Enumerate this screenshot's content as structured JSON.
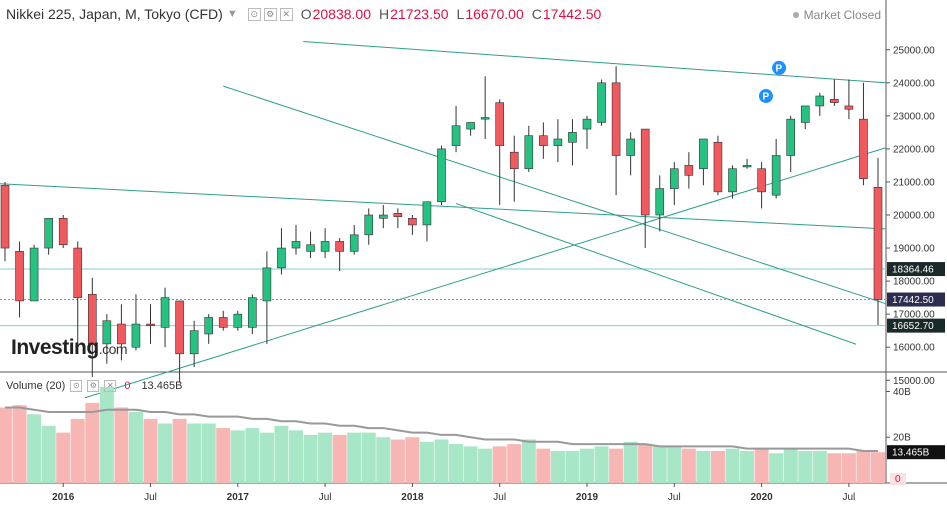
{
  "header": {
    "title": "Nikkei 225, Japan, M, Tokyo (CFD)",
    "chevron_icon": "chevron-down-icon",
    "icons": [
      "settings-icon",
      "gear-icon",
      "close-icon"
    ],
    "ohlc": [
      {
        "label": "O",
        "value": "20838.00"
      },
      {
        "label": "H",
        "value": "21723.50"
      },
      {
        "label": "L",
        "value": "16670.00"
      },
      {
        "label": "C",
        "value": "17442.50"
      }
    ],
    "market_status": "Market Closed"
  },
  "volume_legend": {
    "label": "Volume (20)",
    "zero_value": "0",
    "value": "13.465B"
  },
  "logo": {
    "main": "Investing",
    "suffix": ".com"
  },
  "colors": {
    "up": "#26c281",
    "down": "#f0595e",
    "trendline": "#2e9e8f",
    "hline": "#7fcfcf"
  },
  "chart_data": [
    {
      "type": "candlestick",
      "title": "Nikkei 225, Japan, M, Tokyo (CFD)",
      "ylim": [
        14500,
        25300
      ],
      "y_ticks": [
        "15000.00",
        "16000.00",
        "17000.00",
        "18000.00",
        "19000.00",
        "20000.00",
        "21000.00",
        "22000.00",
        "23000.00",
        "24000.00",
        "25000.00"
      ],
      "x_ticks": [
        "2016",
        "Jul",
        "2017",
        "Jul",
        "2018",
        "Jul",
        "2019",
        "Jul",
        "2020",
        "Jul"
      ],
      "price_labels": [
        "18364.46",
        "17442.50",
        "16652.70"
      ],
      "horizontal_lines": [
        18364.46,
        17442.5,
        16652.7
      ],
      "annotations": [
        "P",
        "P"
      ],
      "candles": [
        {
          "date": "2015-09",
          "o": 20900,
          "h": 21000,
          "l": 18600,
          "c": 19000
        },
        {
          "date": "2015-10",
          "o": 18900,
          "h": 19200,
          "l": 16900,
          "c": 17400
        },
        {
          "date": "2015-11",
          "o": 17400,
          "h": 19100,
          "l": 17400,
          "c": 19000
        },
        {
          "date": "2015-12",
          "o": 19000,
          "h": 19900,
          "l": 18800,
          "c": 19900
        },
        {
          "date": "2016-01",
          "o": 19900,
          "h": 20000,
          "l": 19000,
          "c": 19100
        },
        {
          "date": "2016-02",
          "o": 19000,
          "h": 19200,
          "l": 16100,
          "c": 17500
        },
        {
          "date": "2016-03",
          "o": 17600,
          "h": 18100,
          "l": 15100,
          "c": 16100
        },
        {
          "date": "2016-04",
          "o": 16100,
          "h": 17000,
          "l": 15500,
          "c": 16800
        },
        {
          "date": "2016-05",
          "o": 16700,
          "h": 17300,
          "l": 15600,
          "c": 16100
        },
        {
          "date": "2016-06",
          "o": 16000,
          "h": 17600,
          "l": 15900,
          "c": 16700
        },
        {
          "date": "2016-07",
          "o": 16700,
          "h": 17300,
          "l": 16100,
          "c": 16650
        },
        {
          "date": "2016-08",
          "o": 16600,
          "h": 17800,
          "l": 16000,
          "c": 17500
        },
        {
          "date": "2016-09",
          "o": 17400,
          "h": 17400,
          "l": 14950,
          "c": 15800
        },
        {
          "date": "2016-10",
          "o": 15800,
          "h": 16800,
          "l": 15400,
          "c": 16500
        },
        {
          "date": "2016-11",
          "o": 16400,
          "h": 17000,
          "l": 16100,
          "c": 16900
        },
        {
          "date": "2016-12",
          "o": 16900,
          "h": 17100,
          "l": 16500,
          "c": 16600
        },
        {
          "date": "2017-01",
          "o": 16600,
          "h": 17100,
          "l": 16500,
          "c": 17000
        },
        {
          "date": "2017-02",
          "o": 16600,
          "h": 17600,
          "l": 16400,
          "c": 17500
        },
        {
          "date": "2017-03",
          "o": 17400,
          "h": 18900,
          "l": 16100,
          "c": 18400
        },
        {
          "date": "2017-04",
          "o": 18400,
          "h": 19600,
          "l": 18200,
          "c": 19000
        },
        {
          "date": "2017-05",
          "o": 19000,
          "h": 19700,
          "l": 18800,
          "c": 19200
        },
        {
          "date": "2017-06",
          "o": 18900,
          "h": 19500,
          "l": 18700,
          "c": 19100
        },
        {
          "date": "2017-07",
          "o": 18900,
          "h": 19600,
          "l": 18700,
          "c": 19200
        },
        {
          "date": "2017-08",
          "o": 19200,
          "h": 19300,
          "l": 18300,
          "c": 18900
        },
        {
          "date": "2017-09",
          "o": 18900,
          "h": 19700,
          "l": 18800,
          "c": 19400
        },
        {
          "date": "2017-10",
          "o": 19400,
          "h": 20200,
          "l": 19100,
          "c": 20000
        },
        {
          "date": "2017-11",
          "o": 19900,
          "h": 20300,
          "l": 19600,
          "c": 20000
        },
        {
          "date": "2017-12",
          "o": 20050,
          "h": 20200,
          "l": 19600,
          "c": 19950
        },
        {
          "date": "2018-01",
          "o": 19900,
          "h": 20000,
          "l": 19400,
          "c": 19700
        },
        {
          "date": "2018-02",
          "o": 19700,
          "h": 20400,
          "l": 19200,
          "c": 20400
        },
        {
          "date": "2018-03",
          "o": 20400,
          "h": 22100,
          "l": 20300,
          "c": 22000
        },
        {
          "date": "2018-04",
          "o": 22100,
          "h": 23300,
          "l": 21900,
          "c": 22700
        },
        {
          "date": "2018-05",
          "o": 22600,
          "h": 22800,
          "l": 22400,
          "c": 22800
        },
        {
          "date": "2018-06",
          "o": 22900,
          "h": 24200,
          "l": 22300,
          "c": 22950
        },
        {
          "date": "2018-07",
          "o": 23400,
          "h": 23500,
          "l": 20300,
          "c": 22100
        },
        {
          "date": "2018-08",
          "o": 21900,
          "h": 22400,
          "l": 20400,
          "c": 21400
        },
        {
          "date": "2018-09",
          "o": 21400,
          "h": 22700,
          "l": 21300,
          "c": 22400
        },
        {
          "date": "2018-10",
          "o": 22400,
          "h": 22800,
          "l": 21700,
          "c": 22100
        },
        {
          "date": "2018-11",
          "o": 22100,
          "h": 22900,
          "l": 21600,
          "c": 22300
        },
        {
          "date": "2018-12",
          "o": 22200,
          "h": 22900,
          "l": 21500,
          "c": 22500
        },
        {
          "date": "2019-01",
          "o": 22600,
          "h": 23000,
          "l": 22000,
          "c": 22900
        },
        {
          "date": "2019-02",
          "o": 22800,
          "h": 24100,
          "l": 22700,
          "c": 24000
        },
        {
          "date": "2019-03",
          "o": 24000,
          "h": 24500,
          "l": 20600,
          "c": 21800
        },
        {
          "date": "2019-04",
          "o": 21800,
          "h": 22500,
          "l": 21200,
          "c": 22300
        },
        {
          "date": "2019-05",
          "o": 22600,
          "h": 22600,
          "l": 19000,
          "c": 20000
        },
        {
          "date": "2019-06",
          "o": 20000,
          "h": 21200,
          "l": 19500,
          "c": 20800
        },
        {
          "date": "2019-07",
          "o": 20800,
          "h": 21600,
          "l": 20300,
          "c": 21400
        },
        {
          "date": "2019-08",
          "o": 21500,
          "h": 21900,
          "l": 20800,
          "c": 21200
        },
        {
          "date": "2019-09",
          "o": 21400,
          "h": 22300,
          "l": 20900,
          "c": 22300
        },
        {
          "date": "2019-10",
          "o": 22200,
          "h": 22400,
          "l": 20600,
          "c": 20700
        },
        {
          "date": "2019-11",
          "o": 20700,
          "h": 21500,
          "l": 20500,
          "c": 21400
        },
        {
          "date": "2019-12",
          "o": 21500,
          "h": 21700,
          "l": 21400,
          "c": 21500
        },
        {
          "date": "2020-01",
          "o": 21400,
          "h": 21600,
          "l": 20200,
          "c": 20700
        },
        {
          "date": "2020-02",
          "o": 20600,
          "h": 22300,
          "l": 20500,
          "c": 21800
        },
        {
          "date": "2020-03",
          "o": 21800,
          "h": 23000,
          "l": 21300,
          "c": 22900
        },
        {
          "date": "2020-04",
          "o": 22800,
          "h": 23300,
          "l": 22600,
          "c": 23300
        },
        {
          "date": "2020-05",
          "o": 23300,
          "h": 23700,
          "l": 23000,
          "c": 23600
        },
        {
          "date": "2020-06",
          "o": 23500,
          "h": 24100,
          "l": 23300,
          "c": 23400
        },
        {
          "date": "2020-07",
          "o": 23300,
          "h": 24100,
          "l": 22900,
          "c": 23200
        },
        {
          "date": "2020-08",
          "o": 22900,
          "h": 24000,
          "l": 20900,
          "c": 21100
        },
        {
          "date": "2020-09",
          "o": 20838,
          "h": 21723.5,
          "l": 16670,
          "c": 17442.5
        }
      ]
    },
    {
      "type": "bar",
      "title": "Volume (20)",
      "ylim": [
        0,
        45
      ],
      "y_ticks": [
        "20B",
        "40B"
      ],
      "current_value_label": "13.465B",
      "series": [
        {
          "values": [
            33,
            34,
            30,
            25,
            22,
            28,
            35,
            42,
            33,
            31,
            28,
            26,
            28,
            26,
            26,
            24,
            23,
            24,
            22,
            25,
            23,
            21,
            22,
            21,
            22,
            22,
            20,
            19,
            20,
            18,
            19,
            17,
            16,
            15,
            16,
            17,
            19,
            15,
            14,
            14,
            15,
            16,
            15,
            18,
            17,
            16,
            16,
            15,
            14,
            14,
            15,
            14,
            15,
            13,
            15,
            14,
            14,
            13,
            13,
            14,
            13.465
          ]
        },
        {
          "values": [
            33,
            33,
            32,
            31,
            31,
            31,
            31,
            32,
            32,
            32,
            31,
            31,
            30,
            30,
            29,
            29,
            29,
            28,
            28,
            27,
            27,
            26,
            26,
            25,
            25,
            24,
            24,
            23,
            22,
            22,
            21,
            21,
            20,
            19,
            19,
            19,
            18,
            18,
            18,
            17,
            17,
            17,
            17,
            17,
            17,
            16,
            16,
            16,
            16,
            16,
            16,
            15,
            15,
            15,
            15,
            15,
            15,
            15,
            15,
            14,
            14
          ]
        }
      ]
    }
  ]
}
